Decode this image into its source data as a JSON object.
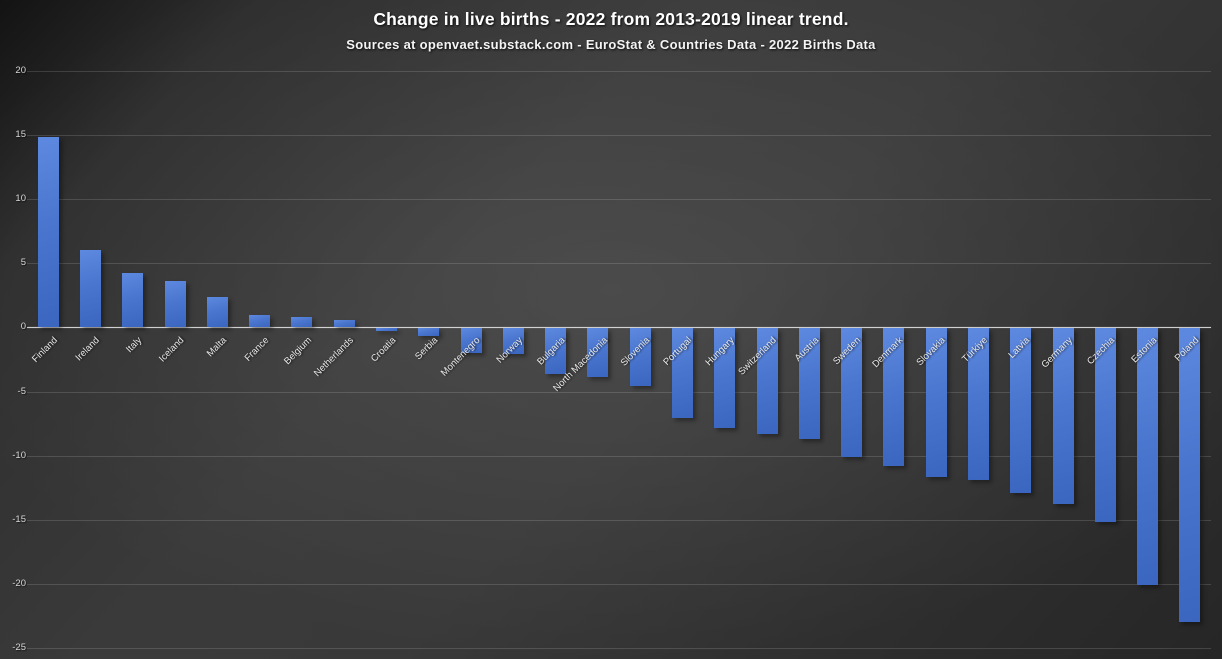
{
  "chart_data": {
    "type": "bar",
    "title": "Change in live births - 2022 from 2013-2019 linear trend.",
    "subtitle": "Sources at openvaet.substack.com - EuroStat & Countries Data - 2022 Births Data",
    "categories": [
      "Finland",
      "Ireland",
      "Italy",
      "Iceland",
      "Malta",
      "France",
      "Belgium",
      "Netherlands",
      "Croatia",
      "Serbia",
      "Montenegro",
      "Norway",
      "Bulgaria",
      "North Macedonia",
      "Slovenia",
      "Portugal",
      "Hungary",
      "Switzerland",
      "Austria",
      "Sweden",
      "Denmark",
      "Slovakia",
      "Türkiye",
      "Latvia",
      "Germany",
      "Czechia",
      "Estonia",
      "Poland"
    ],
    "values": [
      14.8,
      6.0,
      4.2,
      3.6,
      2.4,
      1.0,
      0.8,
      0.6,
      -0.2,
      -0.6,
      -1.9,
      -2.0,
      -3.6,
      -3.8,
      -4.5,
      -7.0,
      -7.8,
      -8.2,
      -8.6,
      -10.0,
      -10.7,
      -11.6,
      -11.8,
      -12.8,
      -13.7,
      -15.1,
      -20.0,
      -22.9
    ],
    "ylabel": "",
    "xlabel": "",
    "ylim": [
      -25,
      20
    ],
    "yticks": [
      20,
      15,
      10,
      5,
      0,
      -5,
      -10,
      -15,
      -20,
      -25
    ],
    "grid": true,
    "legend": "none",
    "bar_color_top": "#5e89e0",
    "bar_color_bottom": "#3b66c0",
    "background_color": "#383838",
    "text_color": "#ffffff",
    "gridline_color": "#5a5a5a",
    "axis_line_color": "#e0e0e0",
    "x_label_rotation_deg": -45
  }
}
